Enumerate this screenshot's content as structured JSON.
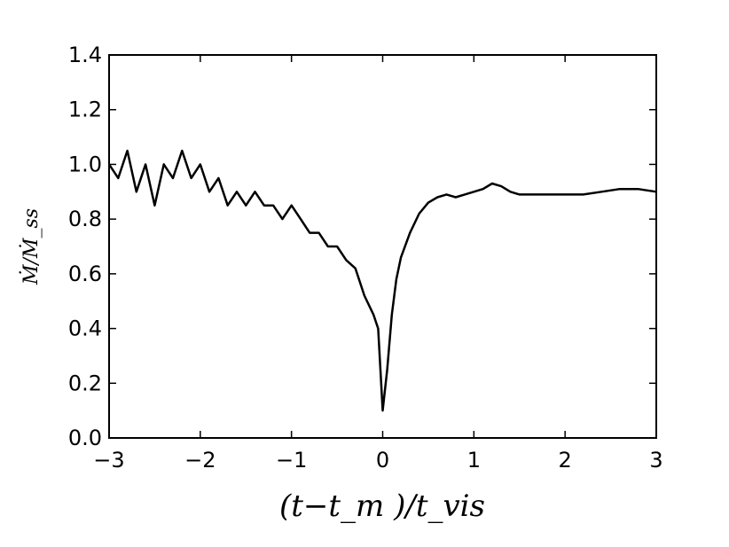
{
  "chart_data": {
    "type": "line",
    "title": "",
    "xlabel": "(t−t_m )/t_vis",
    "ylabel": "Ṁ/Ṁ_ss",
    "xlim": [
      -3,
      3
    ],
    "ylim": [
      0,
      1.4
    ],
    "xticks": [
      "−3",
      "−2",
      "−1",
      "0",
      "1",
      "2",
      "3"
    ],
    "yticks": [
      "0.0",
      "0.2",
      "0.4",
      "0.6",
      "0.8",
      "1.0",
      "1.2",
      "1.4"
    ],
    "grid": false,
    "legend": "none",
    "line_color": "#000000",
    "series": [
      {
        "x": [
          -3.0,
          -2.9,
          -2.8,
          -2.7,
          -2.6,
          -2.5,
          -2.4,
          -2.3,
          -2.2,
          -2.1,
          -2.0,
          -1.9,
          -1.8,
          -1.7,
          -1.6,
          -1.5,
          -1.4,
          -1.3,
          -1.2,
          -1.1,
          -1.0,
          -0.9,
          -0.8,
          -0.7,
          -0.6,
          -0.5,
          -0.4,
          -0.3,
          -0.2,
          -0.1,
          -0.05,
          0.0,
          0.05,
          0.1,
          0.15,
          0.2,
          0.3,
          0.4,
          0.5,
          0.6,
          0.7,
          0.8,
          0.9,
          1.0,
          1.1,
          1.2,
          1.3,
          1.4,
          1.5,
          1.6,
          1.8,
          2.0,
          2.2,
          2.4,
          2.6,
          2.8,
          3.0
        ],
        "y": [
          1.0,
          0.95,
          1.05,
          0.9,
          1.0,
          0.85,
          1.0,
          0.95,
          1.05,
          0.95,
          1.0,
          0.9,
          0.95,
          0.85,
          0.9,
          0.85,
          0.9,
          0.85,
          0.85,
          0.8,
          0.85,
          0.8,
          0.75,
          0.75,
          0.7,
          0.7,
          0.65,
          0.62,
          0.52,
          0.45,
          0.4,
          0.1,
          0.25,
          0.45,
          0.58,
          0.66,
          0.75,
          0.82,
          0.86,
          0.88,
          0.89,
          0.88,
          0.89,
          0.9,
          0.91,
          0.93,
          0.92,
          0.9,
          0.89,
          0.89,
          0.89,
          0.89,
          0.89,
          0.9,
          0.91,
          0.91,
          0.9
        ]
      }
    ]
  }
}
